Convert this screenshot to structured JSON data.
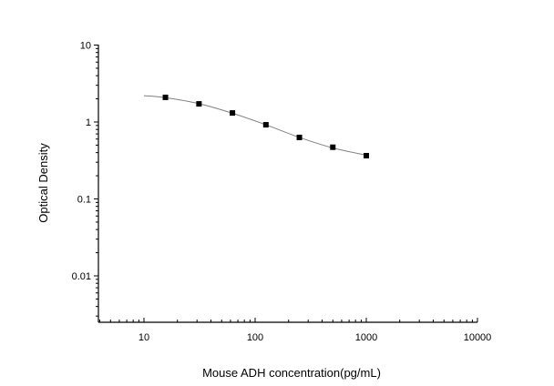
{
  "chart_data": {
    "type": "scatter",
    "title": "",
    "xlabel": "Mouse ADH concentration(pg/mL)",
    "ylabel": "Optical Density",
    "xscale": "log",
    "yscale": "log",
    "xlim": [
      4,
      10000
    ],
    "ylim": [
      0.002,
      10
    ],
    "x_ticks": [
      "10",
      "100",
      "1000",
      "10000"
    ],
    "y_ticks": [
      "10",
      "1",
      "0.1",
      "0.01"
    ],
    "grid": false,
    "legend": null,
    "series": [
      {
        "name": "Standard points",
        "marker": "square",
        "x": [
          15.6,
          31.25,
          62.5,
          125,
          250,
          500,
          1000
        ],
        "y": [
          2.09,
          1.72,
          1.31,
          0.92,
          0.63,
          0.47,
          0.365
        ]
      },
      {
        "name": "Fitted curve",
        "style": "line",
        "x": [
          10,
          15.6,
          31.25,
          62.5,
          125,
          250,
          500,
          1000
        ],
        "y": [
          2.2,
          2.07,
          1.73,
          1.3,
          0.92,
          0.63,
          0.46,
          0.37
        ]
      }
    ]
  }
}
